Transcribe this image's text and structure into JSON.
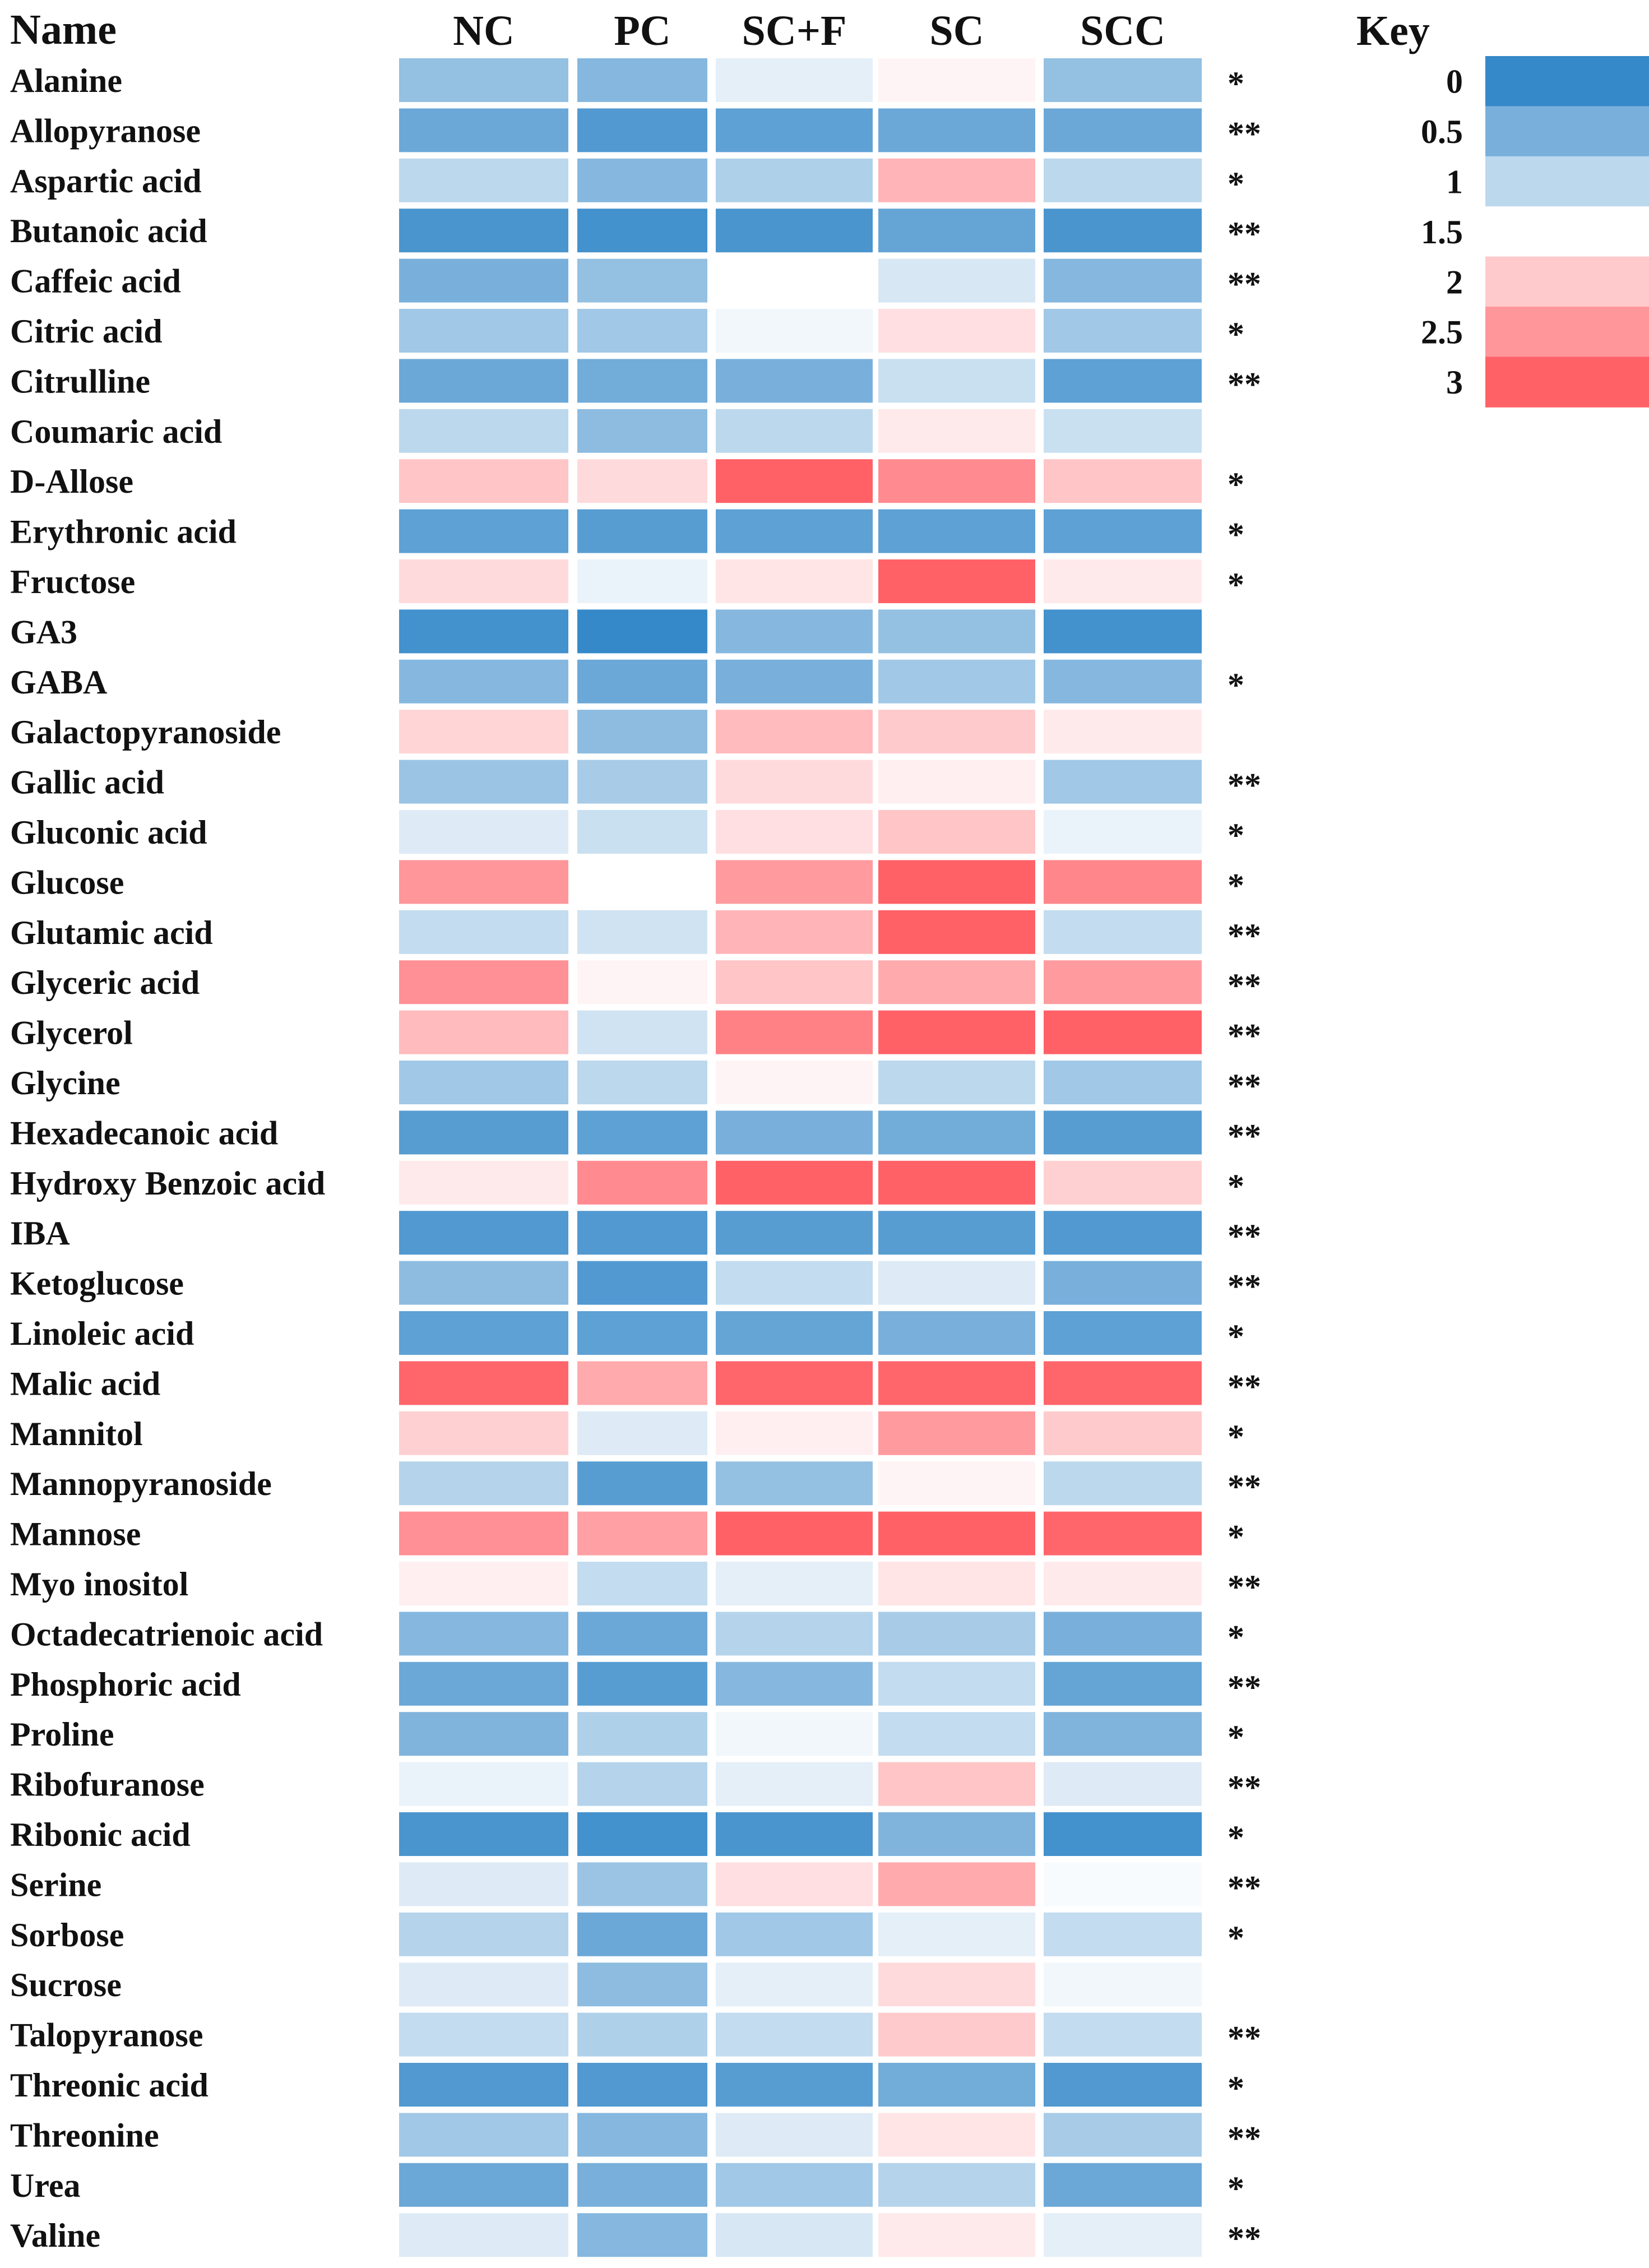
{
  "chart_data": {
    "type": "heatmap",
    "row_header": "Name",
    "columns": [
      "NC",
      "PC",
      "SC+F",
      "SC",
      "SCC"
    ],
    "rows": [
      {
        "name": "Alanine",
        "values": [
          0.7,
          0.6,
          1.3,
          1.6,
          0.7
        ],
        "sig": "*"
      },
      {
        "name": "Allopyranose",
        "values": [
          0.4,
          0.2,
          0.3,
          0.4,
          0.4
        ],
        "sig": "**"
      },
      {
        "name": "Aspartic acid",
        "values": [
          1.0,
          0.6,
          0.9,
          2.2,
          1.0
        ],
        "sig": "*"
      },
      {
        "name": "Butanoic acid",
        "values": [
          0.15,
          0.1,
          0.15,
          0.35,
          0.15
        ],
        "sig": "**"
      },
      {
        "name": "Caffeic acid",
        "values": [
          0.5,
          0.7,
          1.5,
          1.2,
          0.6
        ],
        "sig": "**"
      },
      {
        "name": "Citric acid",
        "values": [
          0.8,
          0.8,
          1.4,
          1.8,
          0.8
        ],
        "sig": "*"
      },
      {
        "name": "Citrulline",
        "values": [
          0.4,
          0.45,
          0.5,
          1.1,
          0.3
        ],
        "sig": "**"
      },
      {
        "name": "Coumaric acid",
        "values": [
          1.0,
          0.65,
          1.0,
          1.7,
          1.1
        ],
        "sig": ""
      },
      {
        "name": "D-Allose",
        "values": [
          2.05,
          1.85,
          3.0,
          2.6,
          2.05
        ],
        "sig": "*"
      },
      {
        "name": "Erythronic acid",
        "values": [
          0.3,
          0.25,
          0.3,
          0.3,
          0.3
        ],
        "sig": "*"
      },
      {
        "name": "Fructose",
        "values": [
          1.85,
          1.35,
          1.75,
          3.0,
          1.7
        ],
        "sig": "*"
      },
      {
        "name": "GA3",
        "values": [
          0.1,
          0.0,
          0.6,
          0.7,
          0.1
        ],
        "sig": ""
      },
      {
        "name": "GABA",
        "values": [
          0.6,
          0.4,
          0.5,
          0.8,
          0.6
        ],
        "sig": "*"
      },
      {
        "name": "Galactopyranoside",
        "values": [
          1.9,
          0.65,
          2.15,
          2.0,
          1.7
        ],
        "sig": ""
      },
      {
        "name": "Gallic acid",
        "values": [
          0.75,
          0.85,
          1.85,
          1.65,
          0.8
        ],
        "sig": "**"
      },
      {
        "name": "Gluconic acid",
        "values": [
          1.25,
          1.1,
          1.8,
          2.05,
          1.35
        ],
        "sig": "*"
      },
      {
        "name": "Glucose",
        "values": [
          2.5,
          1.5,
          2.45,
          3.0,
          2.65
        ],
        "sig": "*"
      },
      {
        "name": "Glutamic acid",
        "values": [
          1.05,
          1.15,
          2.2,
          3.0,
          1.05
        ],
        "sig": "**"
      },
      {
        "name": "Glyceric acid",
        "values": [
          2.55,
          1.6,
          2.05,
          2.3,
          2.45
        ],
        "sig": "**"
      },
      {
        "name": "Glycerol",
        "values": [
          2.15,
          1.15,
          2.7,
          3.0,
          3.0
        ],
        "sig": "**"
      },
      {
        "name": "Glycine",
        "values": [
          0.8,
          1.0,
          1.6,
          1.0,
          0.8
        ],
        "sig": "**"
      },
      {
        "name": "Hexadecanoic acid",
        "values": [
          0.25,
          0.3,
          0.5,
          0.45,
          0.25
        ],
        "sig": "**"
      },
      {
        "name": "Hydroxy Benzoic acid",
        "values": [
          1.7,
          2.6,
          3.0,
          3.0,
          1.95
        ],
        "sig": "*"
      },
      {
        "name": "IBA",
        "values": [
          0.2,
          0.2,
          0.25,
          0.25,
          0.2
        ],
        "sig": "**"
      },
      {
        "name": "Ketoglucose",
        "values": [
          0.65,
          0.2,
          1.05,
          1.25,
          0.5
        ],
        "sig": "**"
      },
      {
        "name": "Linoleic acid",
        "values": [
          0.3,
          0.3,
          0.35,
          0.5,
          0.3
        ],
        "sig": "*"
      },
      {
        "name": "Malic acid",
        "values": [
          2.95,
          2.3,
          2.95,
          2.95,
          2.95
        ],
        "sig": "**"
      },
      {
        "name": "Mannitol",
        "values": [
          1.95,
          1.25,
          1.65,
          2.45,
          2.0
        ],
        "sig": "*"
      },
      {
        "name": "Mannopyranoside",
        "values": [
          0.95,
          0.25,
          0.7,
          1.6,
          1.0
        ],
        "sig": "**"
      },
      {
        "name": "Mannose",
        "values": [
          2.55,
          2.4,
          3.0,
          3.0,
          2.95
        ],
        "sig": "*"
      },
      {
        "name": "Myo inositol",
        "values": [
          1.65,
          1.05,
          1.3,
          1.75,
          1.7
        ],
        "sig": "**"
      },
      {
        "name": "Octadecatrienoic acid",
        "values": [
          0.6,
          0.4,
          0.95,
          0.85,
          0.5
        ],
        "sig": "*"
      },
      {
        "name": "Phosphoric acid",
        "values": [
          0.4,
          0.25,
          0.6,
          1.05,
          0.35
        ],
        "sig": "**"
      },
      {
        "name": "Proline",
        "values": [
          0.55,
          0.9,
          1.4,
          1.05,
          0.55
        ],
        "sig": "*"
      },
      {
        "name": "Ribofuranose",
        "values": [
          1.35,
          0.95,
          1.3,
          2.05,
          1.25
        ],
        "sig": "**"
      },
      {
        "name": "Ribonic acid",
        "values": [
          0.15,
          0.1,
          0.15,
          0.55,
          0.1
        ],
        "sig": "*"
      },
      {
        "name": "Serine",
        "values": [
          1.25,
          0.75,
          1.8,
          2.3,
          1.45
        ],
        "sig": "**"
      },
      {
        "name": "Sorbose",
        "values": [
          0.95,
          0.4,
          0.8,
          1.3,
          1.05
        ],
        "sig": "*"
      },
      {
        "name": "Sucrose",
        "values": [
          1.25,
          0.65,
          1.3,
          1.85,
          1.4
        ],
        "sig": ""
      },
      {
        "name": "Talopyranose",
        "values": [
          1.05,
          0.9,
          1.05,
          2.0,
          1.05
        ],
        "sig": "**"
      },
      {
        "name": "Threonic acid",
        "values": [
          0.2,
          0.2,
          0.25,
          0.45,
          0.2
        ],
        "sig": "*"
      },
      {
        "name": "Threonine",
        "values": [
          0.8,
          0.6,
          1.25,
          1.75,
          0.85
        ],
        "sig": "**"
      },
      {
        "name": "Urea",
        "values": [
          0.4,
          0.5,
          0.8,
          0.95,
          0.4
        ],
        "sig": "*"
      },
      {
        "name": "Valine",
        "values": [
          1.25,
          0.6,
          1.2,
          1.7,
          1.3
        ],
        "sig": "**"
      }
    ],
    "key": {
      "title": "Key",
      "labels": [
        "0",
        "0.5",
        "1",
        "1.5",
        "2",
        "2.5",
        "3"
      ],
      "values": [
        0,
        0.5,
        1,
        1.5,
        2,
        2.5,
        3
      ],
      "range": [
        0,
        3
      ]
    },
    "colors": {
      "low": "#3689c9",
      "mid": "#ffffff",
      "high": "#ff6167",
      "text": "#111111"
    }
  }
}
